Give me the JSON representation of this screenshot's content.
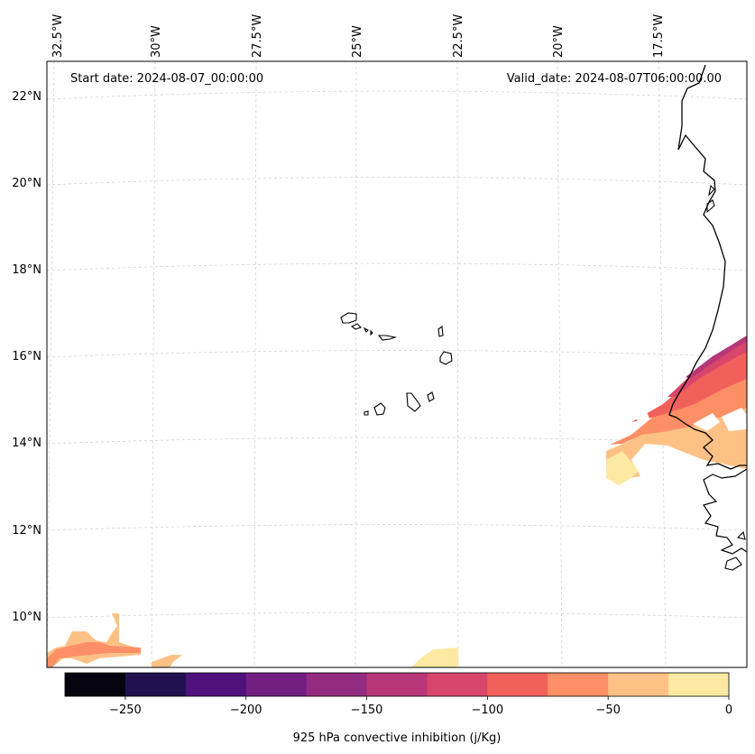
{
  "map": {
    "start_label": "Start date: 2024-08-07_00:00:00",
    "valid_label": "Valid_date: 2024-08-07T06:00:00.00",
    "lon_labels": [
      "32.5°W",
      "30°W",
      "27.5°W",
      "25°W",
      "22.5°W",
      "20°W",
      "17.5°W"
    ],
    "lat_labels": [
      "22°N",
      "20°N",
      "18°N",
      "16°N",
      "14°N",
      "12°N",
      "10°N"
    ],
    "gridlines": true,
    "coastline_color": "#000000"
  },
  "colorbar": {
    "label": "925 hPa convective inhibition (j/Kg)",
    "tick_labels": [
      "−250",
      "−200",
      "−150",
      "−100",
      "−50",
      "0"
    ],
    "levels": [
      -275,
      -250,
      -225,
      -200,
      -175,
      -150,
      -125,
      -100,
      -75,
      -50,
      -25,
      0
    ],
    "colors": [
      "#05040f",
      "#221150",
      "#4f117b",
      "#721f81",
      "#932b80",
      "#b73779",
      "#d9466b",
      "#f2605c",
      "#fc8f65",
      "#fec185",
      "#fde9a2"
    ]
  },
  "chart_data": {
    "type": "heatmap",
    "variable": "925 hPa convective inhibition",
    "units": "j/Kg",
    "start_date": "2024-08-07_00:00:00",
    "valid_date": "2024-08-07T06:00:00.00",
    "xlim_lon": [
      -33,
      -16
    ],
    "ylim_lat": [
      9,
      22.8
    ],
    "x_ticks": [
      -32.5,
      -30,
      -27.5,
      -25,
      -22.5,
      -20,
      -17.5
    ],
    "y_ticks": [
      22,
      20,
      18,
      16,
      14,
      12,
      10
    ],
    "clim": [
      -275,
      0
    ]
  }
}
